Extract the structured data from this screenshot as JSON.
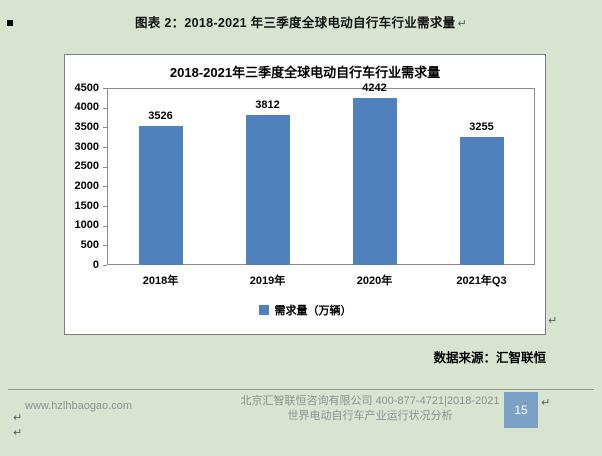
{
  "marks": {
    "line_break": "↵"
  },
  "page": {
    "heading": "图表 2：2018-2021 年三季度全球电动自行车行业需求量",
    "source_note": "数据来源：汇智联恒"
  },
  "footer": {
    "website": "www.hzlhbaogao.com",
    "company_line1": "北京汇智联恒咨询有限公司 400-877-4721|2018-2021",
    "company_line2": "世界电动自行车产业运行状况分析",
    "page_number": "15"
  },
  "colors": {
    "page_background": "#d8e4d0",
    "bar": "#4f81bd",
    "page_number_bg": "#7ba2c6",
    "footer_text": "#8c9196"
  },
  "chart_data": {
    "type": "bar",
    "title": "2018-2021年三季度全球电动自行车行业需求量",
    "categories": [
      "2018年",
      "2019年",
      "2020年",
      "2021年Q3"
    ],
    "values": [
      3526,
      3812,
      4242,
      3255
    ],
    "series_name": "需求量（万辆）",
    "legend": [
      "需求量（万辆）"
    ],
    "ylim": [
      0,
      4500
    ],
    "yticks": [
      0,
      500,
      1000,
      1500,
      2000,
      2500,
      3000,
      3500,
      4000,
      4500
    ],
    "grid": false,
    "data_labels": true,
    "legend_position": "bottom"
  }
}
